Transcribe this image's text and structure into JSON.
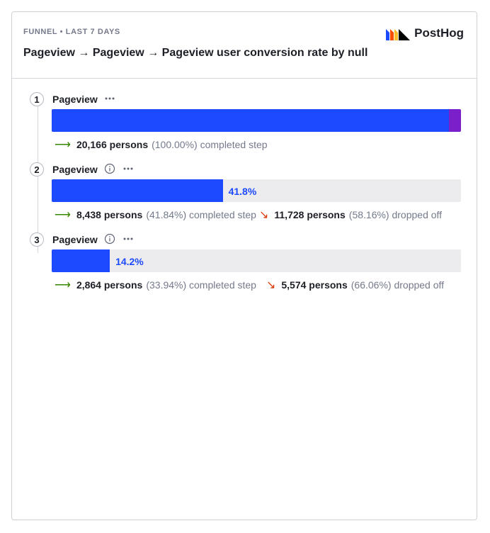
{
  "header": {
    "eyebrow": "FUNNEL • LAST 7 DAYS",
    "title": "Pageview → Pageview → Pageview user conversion rate by null",
    "logo_text": "PostHog"
  },
  "colors": {
    "bar_blue": "#1d4aff",
    "bar_purple": "#7b1fcb",
    "completed_arrow": "#388600",
    "dropped_arrow": "#db3707"
  },
  "steps": [
    {
      "number": "1",
      "name": "Pageview",
      "has_info": false,
      "conversion_fraction": 1.0,
      "bar_label": "",
      "completed_count": "20,166 persons",
      "completed_pct": "(100.00%) completed step",
      "dropped_count": "",
      "dropped_pct": ""
    },
    {
      "number": "2",
      "name": "Pageview",
      "has_info": true,
      "conversion_fraction": 0.418,
      "bar_label": "41.8%",
      "completed_count": "8,438 persons",
      "completed_pct": "(41.84%) completed step",
      "dropped_count": "11,728 persons",
      "dropped_pct": "(58.16%) dropped off"
    },
    {
      "number": "3",
      "name": "Pageview",
      "has_info": true,
      "conversion_fraction": 0.142,
      "bar_label": "14.2%",
      "completed_count": "2,864 persons",
      "completed_pct": "(33.94%) completed step",
      "dropped_count": "5,574 persons",
      "dropped_pct": "(66.06%) dropped off"
    }
  ]
}
